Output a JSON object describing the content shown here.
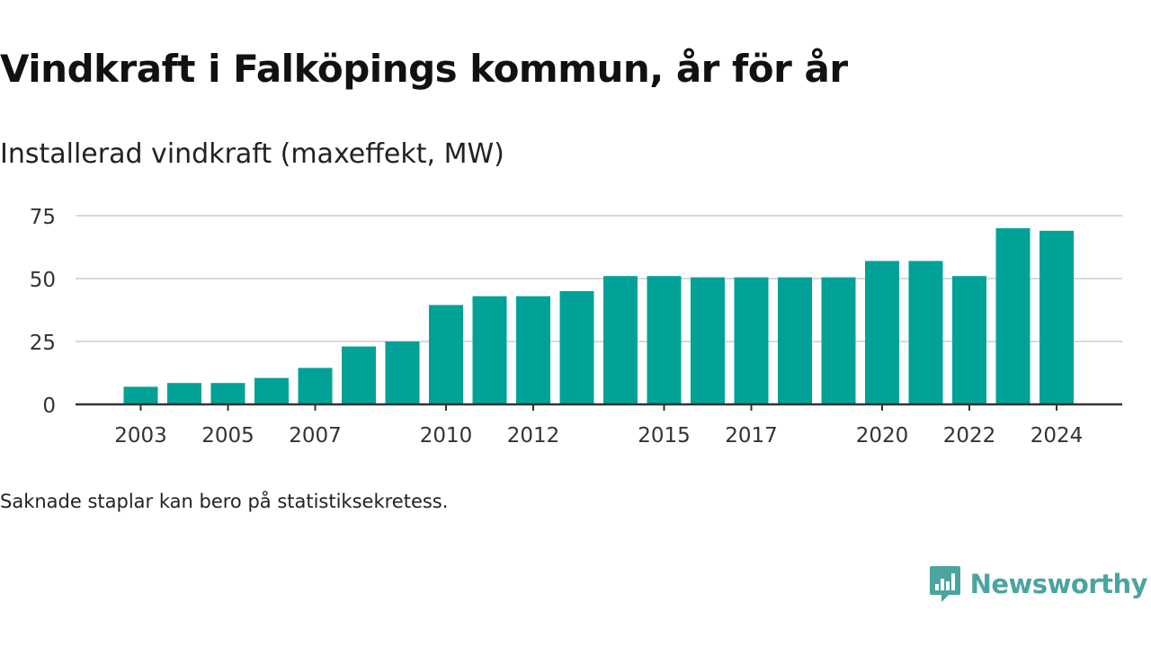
{
  "title": "Vindkraft i Falköpings kommun, år för år",
  "subtitle": "Installerad vindkraft (maxeffekt, MW)",
  "footnote": "Saknade staplar kan bero på statistiksekretess.",
  "brand": {
    "name": "Newsworthy",
    "logo_icon": "newsworthy-logo-icon",
    "color": "#4aa59f"
  },
  "chart_data": {
    "type": "bar",
    "categories": [
      "2003",
      "2004",
      "2005",
      "2006",
      "2007",
      "2008",
      "2009",
      "2010",
      "2011",
      "2012",
      "2013",
      "2014",
      "2015",
      "2016",
      "2017",
      "2018",
      "2019",
      "2020",
      "2021",
      "2022",
      "2023",
      "2024"
    ],
    "values": [
      7,
      8.5,
      8.5,
      10.5,
      14.5,
      23,
      25,
      39.5,
      43,
      43,
      45,
      51,
      51,
      50.5,
      50.5,
      50.5,
      50.5,
      57,
      57,
      51,
      70,
      69
    ],
    "x_tick_labels": [
      "2003",
      "2005",
      "2007",
      "2010",
      "2012",
      "2015",
      "2017",
      "2020",
      "2022",
      "2024"
    ],
    "y_ticks": [
      0,
      25,
      50,
      75
    ],
    "ylim": [
      0,
      75
    ],
    "grid": true,
    "bar_color": "#00a298",
    "title": "Vindkraft i Falköpings kommun, år för år",
    "subtitle": "Installerad vindkraft (maxeffekt, MW)",
    "xlabel": "",
    "ylabel": ""
  }
}
